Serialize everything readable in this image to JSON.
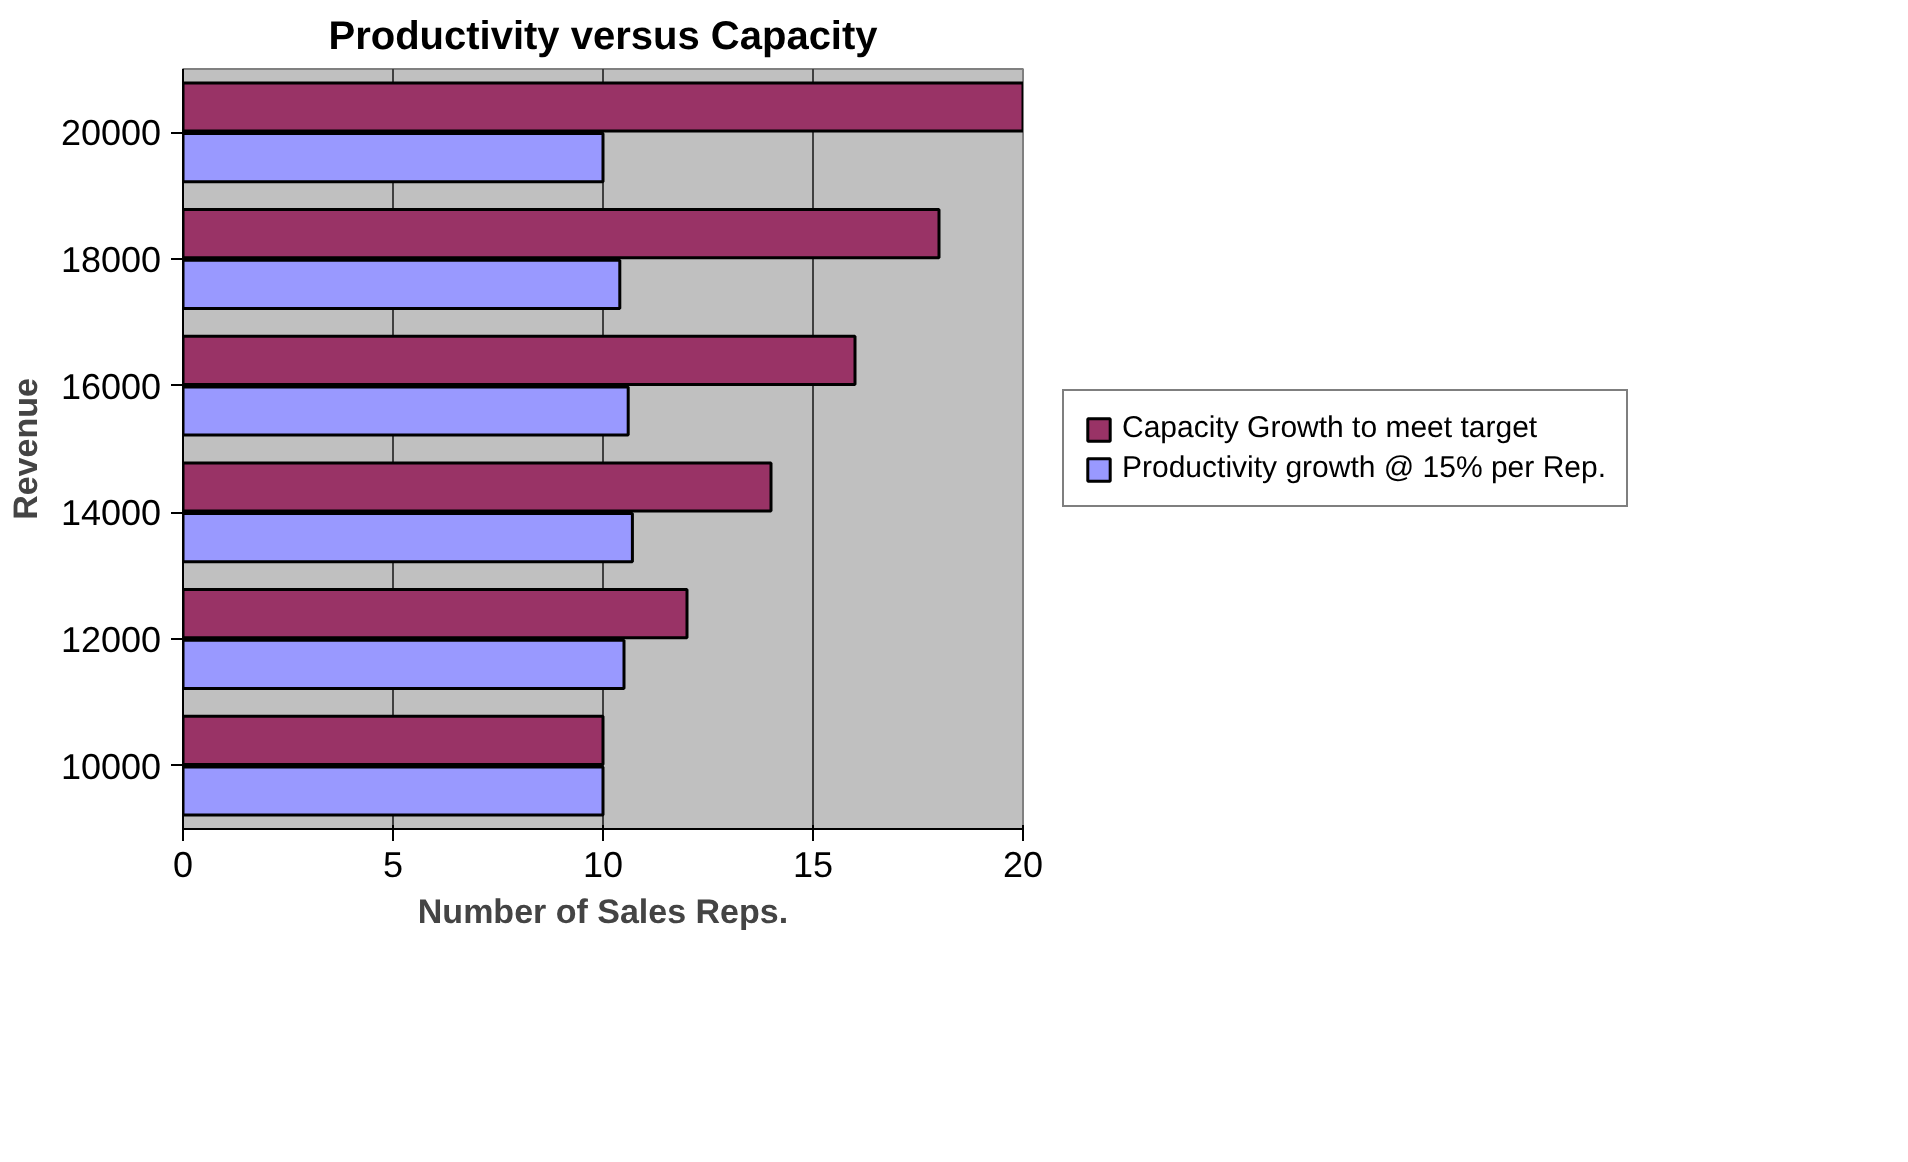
{
  "chart_data": {
    "type": "bar",
    "orientation": "horizontal",
    "title": "Productivity versus Capacity",
    "xlabel": "Number of Sales Reps.",
    "ylabel": "Revenue",
    "categories": [
      "20000",
      "18000",
      "16000",
      "14000",
      "12000",
      "10000"
    ],
    "series": [
      {
        "name": "Capacity Growth to meet target",
        "color": "#993366",
        "values": [
          20,
          18,
          16,
          14,
          12,
          10
        ]
      },
      {
        "name": "Productivity growth @ 15% per Rep.",
        "color": "#9999ff",
        "values": [
          10.0,
          10.4,
          10.6,
          10.7,
          10.5,
          10.0
        ]
      }
    ],
    "xlim": [
      0,
      20
    ],
    "xticks": [
      0,
      5,
      10,
      15,
      20
    ],
    "grid": "x",
    "legend": "right"
  }
}
